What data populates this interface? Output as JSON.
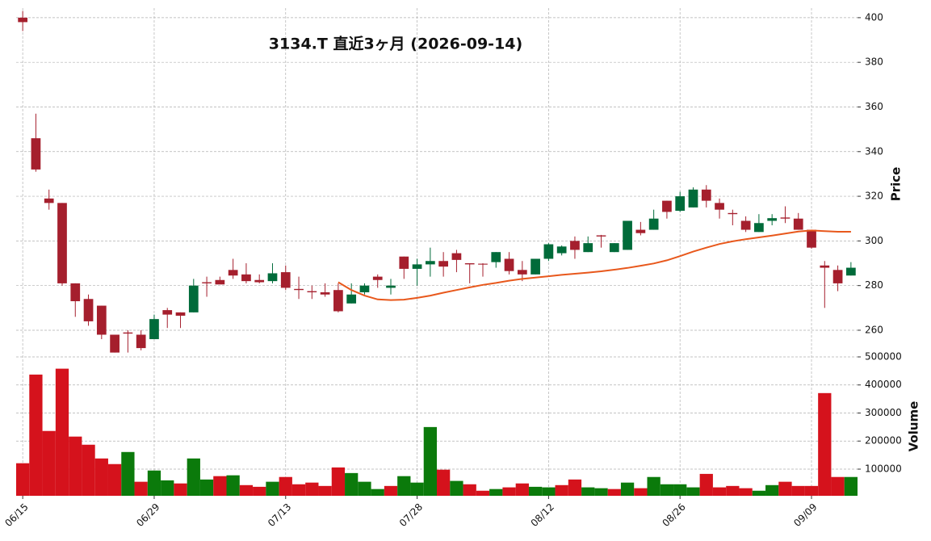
{
  "chart_data": {
    "type": "candlestick",
    "title": "3134.T 直近3ヶ月 (2026-09-14)",
    "categories": [
      "06/15",
      null,
      null,
      null,
      null,
      null,
      null,
      null,
      null,
      null,
      "06/29",
      null,
      null,
      null,
      null,
      null,
      null,
      null,
      null,
      null,
      "07/13",
      null,
      null,
      null,
      null,
      null,
      null,
      null,
      null,
      null,
      "07/28",
      null,
      null,
      null,
      null,
      null,
      null,
      null,
      null,
      null,
      "08/12",
      null,
      null,
      null,
      null,
      null,
      null,
      null,
      null,
      null,
      "08/26",
      null,
      null,
      null,
      null,
      null,
      null,
      null,
      null,
      null,
      "09/09",
      null,
      null,
      null
    ],
    "open": [
      400,
      346,
      319,
      317,
      281,
      274,
      271,
      258,
      259,
      258,
      256,
      269,
      268,
      268,
      281.5,
      282.5,
      287,
      285,
      282.5,
      282,
      286,
      278.5,
      277.5,
      277,
      278,
      272,
      277,
      284,
      279,
      293,
      287.5,
      289.5,
      291,
      294.5,
      290,
      289.8,
      290.5,
      292,
      287,
      285,
      292,
      294.5,
      300,
      295,
      302.5,
      295,
      296,
      305,
      305,
      318,
      313.5,
      315,
      323,
      317,
      312.5,
      309,
      304,
      309,
      310.5,
      310,
      305,
      289,
      287,
      284.5
    ],
    "high": [
      403,
      357,
      323,
      317,
      281,
      276,
      271,
      258,
      260,
      260,
      267,
      270,
      268,
      283,
      284,
      284,
      292,
      290,
      285,
      290,
      289,
      284,
      280,
      281,
      281,
      281,
      281,
      285,
      283,
      293,
      292,
      297,
      295,
      296,
      290,
      290,
      295,
      295,
      291,
      292,
      299,
      298,
      302,
      302,
      302.7,
      299,
      309,
      308.5,
      314,
      318,
      322,
      324,
      325,
      319,
      314,
      311,
      312,
      312,
      315.5,
      312.5,
      305,
      291,
      289,
      290.5
    ],
    "low": [
      394,
      331,
      314,
      280,
      266,
      262,
      256,
      250,
      250,
      251,
      256,
      261,
      261,
      268,
      275,
      281,
      283,
      281,
      281,
      281,
      278,
      274,
      274,
      275,
      268,
      272,
      276,
      279,
      276,
      283,
      280,
      284,
      284,
      286,
      281,
      284,
      288,
      285,
      282,
      285,
      291,
      293.5,
      292,
      295,
      297,
      295,
      296,
      302.5,
      305,
      310,
      313,
      315,
      315,
      310,
      307,
      304,
      304,
      307,
      308,
      305,
      296.5,
      270,
      277.5,
      284.5
    ],
    "close": [
      398,
      332,
      317,
      281,
      273,
      264,
      258,
      250,
      258.5,
      252,
      265,
      267,
      266.5,
      280,
      281,
      280.5,
      284.5,
      282,
      281.5,
      285.5,
      279,
      278,
      277,
      276,
      268.5,
      276,
      280,
      282.5,
      280,
      287.5,
      289.5,
      291,
      288.5,
      291.5,
      289.5,
      289.4,
      295,
      286.5,
      285,
      292,
      298.5,
      297.5,
      296,
      299,
      302,
      299,
      309,
      303.5,
      310,
      313,
      320,
      323,
      318,
      314,
      312,
      305,
      308,
      310.2,
      310,
      305,
      297,
      288,
      281,
      288
    ],
    "up_color": "#006b3a",
    "down_color": "#a51f2d",
    "ma": {
      "color": "#e8581c",
      "values": [
        null,
        null,
        null,
        null,
        null,
        null,
        null,
        null,
        null,
        null,
        null,
        null,
        null,
        null,
        null,
        null,
        null,
        null,
        null,
        null,
        null,
        null,
        null,
        null,
        281.5,
        278,
        275.5,
        273.8,
        273.5,
        273.7,
        274.5,
        275.5,
        276.8,
        278,
        279.2,
        280.3,
        281.2,
        282.2,
        283,
        283.6,
        284.2,
        284.8,
        285.3,
        285.8,
        286.4,
        287.1,
        287.9,
        288.9,
        289.9,
        291.3,
        293.2,
        295.2,
        297,
        298.6,
        299.8,
        300.8,
        301.6,
        302.4,
        303.3,
        304.2,
        304.7,
        304.4,
        304.1,
        304.1
      ]
    },
    "ylabel": "Price",
    "ylim": [
      249.5,
      404.3
    ],
    "yticks": [
      260,
      280,
      300,
      320,
      340,
      360,
      380,
      400
    ],
    "grid": true,
    "volume": {
      "ylabel": "Volume",
      "values": [
        121000,
        437000,
        236000,
        458000,
        216000,
        187000,
        138000,
        118000,
        161000,
        55000,
        95000,
        60000,
        49000,
        138000,
        63000,
        75000,
        78000,
        43000,
        37000,
        55000,
        72000,
        46000,
        52000,
        40000,
        106000,
        86000,
        55000,
        29000,
        40000,
        75000,
        52000,
        250000,
        98000,
        58000,
        46000,
        23000,
        29000,
        35000,
        49000,
        37000,
        35000,
        43000,
        63000,
        35000,
        32000,
        29000,
        52000,
        32000,
        72000,
        46000,
        46000,
        35000,
        83000,
        35000,
        40000,
        32000,
        23000,
        43000,
        55000,
        40000,
        40000,
        371000,
        72000,
        72000
      ],
      "up_color": "#0b7a0b",
      "down_color": "#d5121c",
      "ylim": [
        5000,
        511500
      ],
      "yticks": [
        100000,
        200000,
        300000,
        400000,
        500000
      ]
    }
  }
}
